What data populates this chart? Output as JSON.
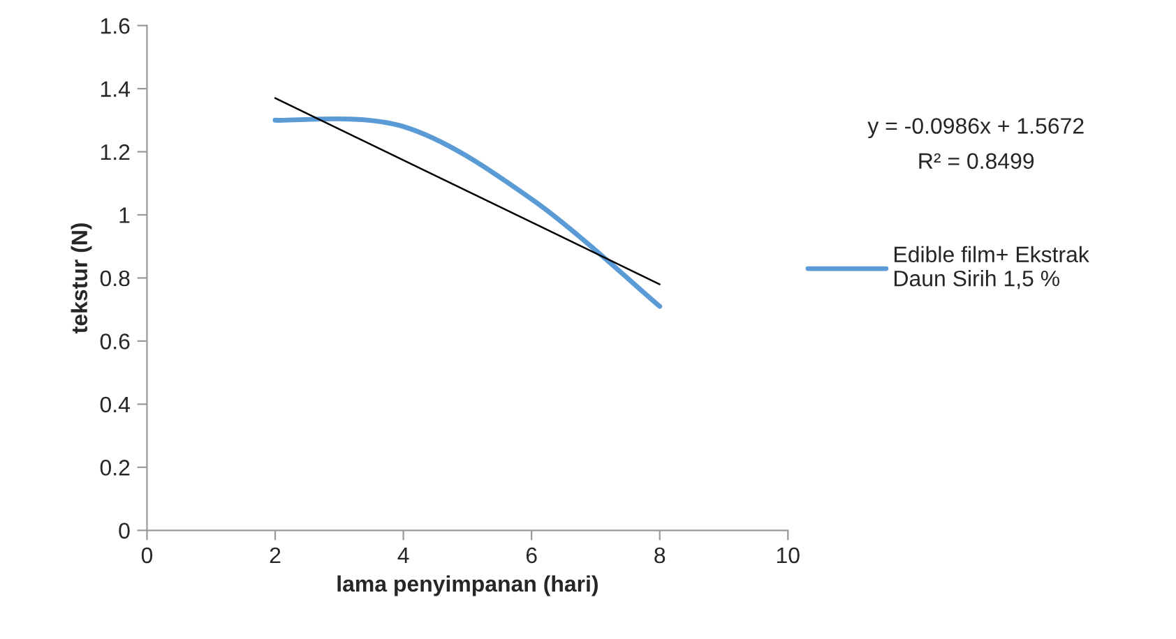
{
  "chart_data": {
    "type": "line",
    "xlabel": "lama penyimpanan (hari)",
    "ylabel": "tekstur (N)",
    "xlim": [
      0,
      10
    ],
    "xticks": [
      0,
      2,
      4,
      6,
      8,
      10
    ],
    "ylim": [
      0,
      1.6
    ],
    "yticks": [
      0,
      0.2,
      0.4,
      0.6,
      0.8,
      1,
      1.2,
      1.4,
      1.6
    ],
    "grid": false,
    "legend": "right",
    "series": [
      {
        "name": "Edible film+ Ekstrak Daun Sirih 1,5 %",
        "color": "#5b9bd5",
        "x": [
          2,
          4,
          6,
          8
        ],
        "values": [
          1.3,
          1.28,
          1.05,
          0.71
        ]
      },
      {
        "type": "line",
        "color": "#000000",
        "x": [
          2,
          8
        ],
        "values": [
          1.37,
          0.78
        ]
      }
    ],
    "annotations": [
      "y = -0.0986x + 1.5672",
      "R² = 0.8499"
    ]
  }
}
